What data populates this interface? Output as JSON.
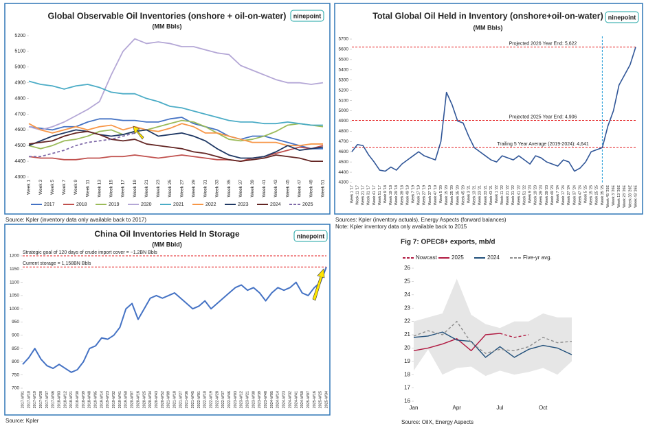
{
  "chart_data": [
    {
      "type": "line",
      "title": "Global Observable Oil Inventories (onshore + oil-on-water)",
      "subtitle": "(MM Bbls)",
      "logo": "ninepoint",
      "notes": [
        "Source: Kpler (inventory data only available back to 2017)"
      ],
      "categories": [
        "Week 1",
        "Week 3",
        "Week 5",
        "Week 7",
        "Week 9",
        "Week 11",
        "Week 13",
        "Week 15",
        "Week 17",
        "Week 19",
        "Week 21",
        "Week 23",
        "Week 25",
        "Week 27",
        "Week 29",
        "Week 31",
        "Week 33",
        "Week 35",
        "Week 37",
        "Week 39",
        "Week 41",
        "Week 43",
        "Week 45",
        "Week 47",
        "Week 49",
        "Week 51"
      ],
      "ylim": [
        4300,
        5200
      ],
      "yticks": [
        4300,
        4400,
        4500,
        4600,
        4700,
        4800,
        4900,
        5000,
        5100,
        5200
      ],
      "legend": "bottom",
      "series": [
        {
          "name": "2017",
          "color": "#4472c4",
          "values": [
            4620,
            4610,
            4600,
            4620,
            4620,
            4650,
            4670,
            4670,
            4660,
            4660,
            4650,
            4650,
            4670,
            4680,
            4640,
            4620,
            4600,
            4560,
            4540,
            4560,
            4560,
            4540,
            4520,
            4500,
            4480,
            4480
          ]
        },
        {
          "name": "2018",
          "color": "#c0504d",
          "values": [
            4430,
            4420,
            4420,
            4410,
            4410,
            4420,
            4420,
            4430,
            4430,
            4440,
            4430,
            4420,
            4430,
            4440,
            4430,
            4420,
            4410,
            4410,
            4400,
            4420,
            4430,
            4450,
            4470,
            4490,
            4480,
            4500
          ]
        },
        {
          "name": "2019",
          "color": "#9bbb59",
          "values": [
            4500,
            4480,
            4500,
            4530,
            4540,
            4560,
            4590,
            4600,
            4570,
            4590,
            4600,
            4620,
            4640,
            4660,
            4650,
            4620,
            4580,
            4540,
            4530,
            4540,
            4560,
            4590,
            4630,
            4640,
            4630,
            4620
          ]
        },
        {
          "name": "2020",
          "color": "#b4a7d6",
          "values": [
            4620,
            4600,
            4620,
            4650,
            4690,
            4730,
            4780,
            4950,
            5100,
            5180,
            5150,
            5160,
            5150,
            5130,
            5130,
            5110,
            5090,
            5080,
            5010,
            4980,
            4950,
            4920,
            4900,
            4900,
            4890,
            4900
          ]
        },
        {
          "name": "2021",
          "color": "#4bacc6",
          "values": [
            4910,
            4890,
            4880,
            4860,
            4880,
            4890,
            4870,
            4840,
            4830,
            4830,
            4800,
            4780,
            4750,
            4740,
            4720,
            4700,
            4680,
            4660,
            4650,
            4650,
            4640,
            4640,
            4650,
            4640,
            4630,
            4630
          ]
        },
        {
          "name": "2022",
          "color": "#f79646",
          "values": [
            4640,
            4600,
            4580,
            4600,
            4620,
            4600,
            4620,
            4630,
            4600,
            4620,
            4600,
            4590,
            4610,
            4640,
            4620,
            4580,
            4580,
            4560,
            4540,
            4520,
            4520,
            4520,
            4500,
            4500,
            4510,
            4510
          ]
        },
        {
          "name": "2023",
          "color": "#1f3864",
          "values": [
            4500,
            4530,
            4560,
            4580,
            4600,
            4590,
            4570,
            4560,
            4570,
            4590,
            4600,
            4560,
            4570,
            4580,
            4560,
            4530,
            4480,
            4440,
            4420,
            4420,
            4430,
            4460,
            4500,
            4470,
            4480,
            4490
          ]
        },
        {
          "name": "2024",
          "color": "#632523",
          "values": [
            4510,
            4520,
            4530,
            4560,
            4580,
            4590,
            4570,
            4540,
            4530,
            4540,
            4510,
            4500,
            4490,
            4480,
            4460,
            4450,
            4430,
            4410,
            4400,
            4410,
            4420,
            4440,
            4430,
            4420,
            4400,
            4400
          ]
        },
        {
          "name": "2025",
          "color": "#7f6aa8",
          "dash": true,
          "values": [
            4430,
            4430,
            4450,
            4470,
            4500,
            4520,
            4530,
            4540,
            4560,
            4580,
            null,
            null,
            null,
            null,
            null,
            null,
            null,
            null,
            null,
            null,
            null,
            null,
            null,
            null,
            null,
            null
          ]
        }
      ]
    },
    {
      "type": "line",
      "title": "Total Global Oil Held in Inventory (onshore+oil-on-water)",
      "subtitle": "(MM Bbls)",
      "logo": "ninepoint",
      "notes": [
        "Sources: Kpler (inventory actuals), Energy Aspects (forward balances)",
        "Note: Kpler inventory data only available back to 2015"
      ],
      "categories": [
        "Week 1 '17",
        "Week 11 '17",
        "Week 21 '17",
        "Week 31 '17",
        "Week 41 '17",
        "Week 51 '17",
        "Week 9 '18",
        "Week 19 '18",
        "Week 29 '18",
        "Week 39 '18",
        "Week 49 '18",
        "Week 7 '19",
        "Week 17 '19",
        "Week 27 '19",
        "Week 37 '19",
        "Week 47 '19",
        "Week 5 '20",
        "Week 15 '20",
        "Week 25 '20",
        "Week 35 '20",
        "Week 45 '20",
        "Week 3 '21",
        "Week 13 '21",
        "Week 23 '21",
        "Week 33 '21",
        "Week 43 '21",
        "Week 1 '22",
        "Week 11 '22",
        "Week 21 '22",
        "Week 31 '22",
        "Week 41 '22",
        "Week 51 '22",
        "Week 9 '23",
        "Week 19 '23",
        "Week 29 '23",
        "Week 39 '23",
        "Week 49 '23",
        "Week 7 '24",
        "Week 17 '24",
        "Week 27 '24",
        "Week 37 '24",
        "Week 47 '24",
        "Week 5 '25",
        "Week 15 '25",
        "Week 25 '25",
        "Week 35 '25",
        "Week 45 '25E",
        "Week 3 '26E",
        "Week 13 '26E",
        "Week 23 '26E",
        "Week 33 '26E",
        "Week 43 '26E"
      ],
      "ylim": [
        4300,
        5700
      ],
      "yticks": [
        4300,
        4400,
        4500,
        4600,
        4700,
        4800,
        4900,
        5000,
        5100,
        5200,
        5300,
        5400,
        5500,
        5600,
        5700
      ],
      "forecast_start": "Week 35 '25",
      "refs": [
        {
          "value": 5622,
          "label": "Projected 2026 Year End: 5,622"
        },
        {
          "value": 4906,
          "label": "Projected 2025 Year End: 4,906"
        },
        {
          "value": 4641,
          "label": "Trailing 5 Year Average (2019-2024): 4,641"
        }
      ],
      "series": [
        {
          "color": "#2f5597",
          "values": [
            4600,
            4670,
            4660,
            4570,
            4500,
            4420,
            4410,
            4450,
            4420,
            4480,
            4520,
            4560,
            4600,
            4560,
            4540,
            4520,
            4700,
            5180,
            5060,
            4900,
            4880,
            4750,
            4640,
            4600,
            4560,
            4520,
            4500,
            4560,
            4540,
            4520,
            4560,
            4520,
            4480,
            4560,
            4540,
            4500,
            4480,
            4460,
            4520,
            4500,
            4410,
            4440,
            4500,
            4600,
            4620,
            4640,
            4850,
            5000,
            5250,
            5350,
            5450,
            5622
          ]
        }
      ]
    },
    {
      "type": "line",
      "title": "China Oil Inventories Held In Storage",
      "subtitle": "(MM Bbld)",
      "logo": "ninepoint",
      "notes": [
        "Source: Kpler"
      ],
      "categories": [
        "2017-W01",
        "2017-W10",
        "2017-W19",
        "2017-W28",
        "2017-W37",
        "2017-W46",
        "2018-W03",
        "2018-W12",
        "2018-W21",
        "2018-W30",
        "2018-W39",
        "2018-W48",
        "2019-W05",
        "2019-W14",
        "2019-W23",
        "2019-W32",
        "2019-W41",
        "2019-W50",
        "2020-W07",
        "2020-W16",
        "2020-W25",
        "2020-W34",
        "2020-W43",
        "2020-W52",
        "2021-W09",
        "2021-W18",
        "2021-W27",
        "2021-W36",
        "2021-W45",
        "2022-W01",
        "2022-W10",
        "2022-W19",
        "2022-W28",
        "2022-W37",
        "2022-W46",
        "2023-W03",
        "2023-W12",
        "2023-W21",
        "2023-W30",
        "2023-W39",
        "2023-W48",
        "2024-W05",
        "2024-W14",
        "2024-W23",
        "2024-W32",
        "2024-W41",
        "2024-W50",
        "2025-W07",
        "2025-W16",
        "2025-W25",
        "2025-W34"
      ],
      "ylim": [
        700,
        1200
      ],
      "yticks": [
        700,
        750,
        800,
        850,
        900,
        950,
        1000,
        1050,
        1100,
        1150,
        1200
      ],
      "refs": [
        {
          "value": 1200,
          "label": "Strategic goal of 120 days of crude import cover = ~1.2BN Bbls"
        },
        {
          "value": 1158,
          "label": "Current storage = 1,158BN Bbls"
        }
      ],
      "series": [
        {
          "color": "#4472c4",
          "values": [
            790,
            815,
            850,
            810,
            785,
            775,
            790,
            775,
            760,
            770,
            800,
            850,
            860,
            890,
            885,
            900,
            930,
            1000,
            1020,
            960,
            1000,
            1040,
            1050,
            1040,
            1050,
            1060,
            1040,
            1020,
            1000,
            1010,
            1030,
            1000,
            1020,
            1040,
            1060,
            1080,
            1090,
            1070,
            1080,
            1060,
            1030,
            1060,
            1080,
            1070,
            1080,
            1100,
            1060,
            1050,
            1080,
            1100,
            1158
          ]
        }
      ]
    },
    {
      "type": "line",
      "title": "Fig 7: OPEC8+ exports, mb/d",
      "legend": "top",
      "notes": [
        "Source: OilX, Energy Aspects"
      ],
      "categories": [
        "Jan",
        null,
        null,
        "Apr",
        null,
        null,
        "Jul",
        null,
        null,
        "Oct",
        null,
        null
      ],
      "ylim": [
        16,
        26
      ],
      "yticks": [
        16,
        17,
        18,
        19,
        20,
        21,
        22,
        23,
        24,
        25,
        26
      ],
      "range": {
        "color": "#e6e6e6",
        "low": [
          18.3,
          19.9,
          18.0,
          18.5,
          18.6,
          17.9,
          18.3,
          18.0,
          18.2,
          18.5,
          18.0,
          19.0
        ],
        "high": [
          22.0,
          22.3,
          22.6,
          25.2,
          22.5,
          21.8,
          21.5,
          22.0,
          22.0,
          22.6,
          22.3,
          22.3
        ]
      },
      "series": [
        {
          "name": "Nowcast",
          "color": "#b0173f",
          "dash": true,
          "values": [
            null,
            null,
            null,
            null,
            null,
            null,
            21.1,
            20.8,
            21.0,
            null,
            null,
            null
          ]
        },
        {
          "name": "2025",
          "color": "#b0173f",
          "values": [
            19.8,
            20.0,
            20.3,
            20.7,
            19.8,
            21.0,
            21.1,
            null,
            null,
            null,
            null,
            null
          ]
        },
        {
          "name": "2024",
          "color": "#1f4e79",
          "values": [
            20.8,
            20.9,
            21.2,
            20.6,
            20.5,
            19.3,
            20.1,
            19.3,
            19.9,
            20.2,
            20.0,
            19.5
          ]
        },
        {
          "name": "Five-yr avg.",
          "color": "#8c8c8c",
          "dash": true,
          "values": [
            20.9,
            21.3,
            21.0,
            22.0,
            20.4,
            19.6,
            19.9,
            19.8,
            20.1,
            20.8,
            20.4,
            20.5
          ]
        }
      ]
    }
  ]
}
